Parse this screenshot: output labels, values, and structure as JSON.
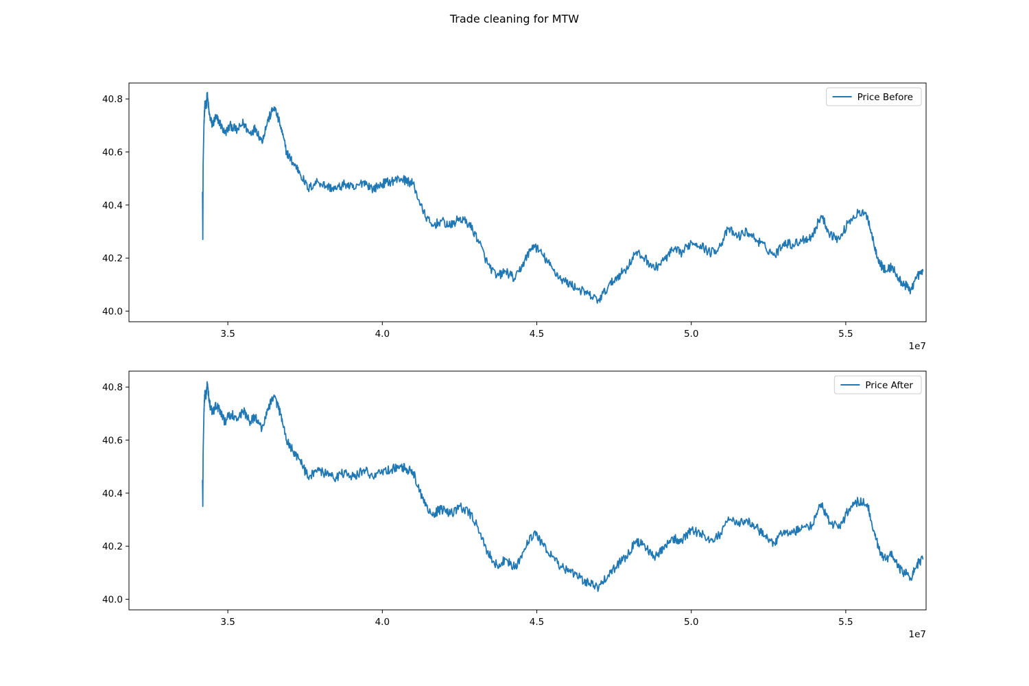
{
  "figure": {
    "suptitle": "Trade cleaning for MTW"
  },
  "chart_data": [
    {
      "type": "line",
      "title": "",
      "xlabel": "",
      "ylabel": "",
      "x_offset_label": "1e7",
      "xlim": [
        31800000,
        57600000
      ],
      "ylim": [
        39.96,
        40.86
      ],
      "x_ticks": [
        35000000,
        40000000,
        45000000,
        50000000,
        55000000
      ],
      "x_tick_labels": [
        "3.5",
        "4.0",
        "4.5",
        "5.0",
        "5.5"
      ],
      "y_ticks": [
        40.0,
        40.2,
        40.4,
        40.6,
        40.8
      ],
      "y_tick_labels": [
        "40.0",
        "40.2",
        "40.4",
        "40.6",
        "40.8"
      ],
      "grid": false,
      "legend_position": "top-right",
      "series": [
        {
          "name": "Price Before",
          "color": "#1f77b4",
          "x": [
            34180000,
            34190000,
            34200000,
            34230000,
            34260000,
            34300000,
            34330000,
            34400000,
            34500000,
            34600000,
            34700000,
            34900000,
            35100000,
            35300000,
            35500000,
            35700000,
            35900000,
            36100000,
            36300000,
            36500000,
            36700000,
            36900000,
            37100000,
            37300000,
            37600000,
            37900000,
            38200000,
            38500000,
            38800000,
            39100000,
            39400000,
            39700000,
            40000000,
            40300000,
            40600000,
            40800000,
            41000000,
            41300000,
            41600000,
            41900000,
            42200000,
            42500000,
            42800000,
            43100000,
            43400000,
            43700000,
            44000000,
            44300000,
            44600000,
            44900000,
            45200000,
            45500000,
            45800000,
            46100000,
            46400000,
            46700000,
            47000000,
            47300000,
            47600000,
            47900000,
            48200000,
            48500000,
            48800000,
            49100000,
            49400000,
            49700000,
            50000000,
            50300000,
            50600000,
            50900000,
            51200000,
            51500000,
            51800000,
            52100000,
            52400000,
            52700000,
            53000000,
            53300000,
            53600000,
            53900000,
            54200000,
            54500000,
            54800000,
            55100000,
            55400000,
            55700000,
            55900000,
            56100000,
            56300000,
            56500000,
            56700000,
            56900000,
            57100000,
            57300000,
            57500000
          ],
          "values": [
            40.45,
            40.27,
            40.55,
            40.72,
            40.78,
            40.77,
            40.82,
            40.74,
            40.7,
            40.73,
            40.72,
            40.67,
            40.7,
            40.68,
            40.71,
            40.67,
            40.69,
            40.64,
            40.72,
            40.77,
            40.7,
            40.6,
            40.56,
            40.53,
            40.46,
            40.49,
            40.47,
            40.46,
            40.48,
            40.46,
            40.49,
            40.46,
            40.48,
            40.49,
            40.5,
            40.49,
            40.48,
            40.38,
            40.32,
            40.34,
            40.32,
            40.35,
            40.33,
            40.27,
            40.18,
            40.13,
            40.15,
            40.12,
            40.19,
            40.25,
            40.21,
            40.16,
            40.12,
            40.1,
            40.08,
            40.06,
            40.04,
            40.09,
            40.13,
            40.16,
            40.22,
            40.2,
            40.16,
            40.19,
            40.23,
            40.22,
            40.26,
            40.25,
            40.22,
            40.24,
            40.31,
            40.28,
            40.3,
            40.27,
            40.24,
            40.21,
            40.26,
            40.25,
            40.27,
            40.28,
            40.36,
            40.29,
            40.27,
            40.34,
            40.37,
            40.36,
            40.26,
            40.18,
            40.15,
            40.17,
            40.12,
            40.1,
            40.08,
            40.13,
            40.15
          ]
        }
      ]
    },
    {
      "type": "line",
      "title": "",
      "xlabel": "",
      "ylabel": "",
      "x_offset_label": "1e7",
      "xlim": [
        31800000,
        57600000
      ],
      "ylim": [
        39.96,
        40.86
      ],
      "x_ticks": [
        35000000,
        40000000,
        45000000,
        50000000,
        55000000
      ],
      "x_tick_labels": [
        "3.5",
        "4.0",
        "4.5",
        "5.0",
        "5.5"
      ],
      "y_ticks": [
        40.0,
        40.2,
        40.4,
        40.6,
        40.8
      ],
      "y_tick_labels": [
        "40.0",
        "40.2",
        "40.4",
        "40.6",
        "40.8"
      ],
      "grid": false,
      "legend_position": "top-right",
      "series": [
        {
          "name": "Price After",
          "color": "#1f77b4",
          "x": [
            34180000,
            34190000,
            34200000,
            34230000,
            34260000,
            34300000,
            34330000,
            34400000,
            34500000,
            34600000,
            34700000,
            34900000,
            35100000,
            35300000,
            35500000,
            35700000,
            35900000,
            36100000,
            36300000,
            36500000,
            36700000,
            36900000,
            37100000,
            37300000,
            37600000,
            37900000,
            38200000,
            38500000,
            38800000,
            39100000,
            39400000,
            39700000,
            40000000,
            40300000,
            40600000,
            40800000,
            41000000,
            41300000,
            41600000,
            41900000,
            42200000,
            42500000,
            42800000,
            43100000,
            43400000,
            43700000,
            44000000,
            44300000,
            44600000,
            44900000,
            45200000,
            45500000,
            45800000,
            46100000,
            46400000,
            46700000,
            47000000,
            47300000,
            47600000,
            47900000,
            48200000,
            48500000,
            48800000,
            49100000,
            49400000,
            49700000,
            50000000,
            50300000,
            50600000,
            50900000,
            51200000,
            51500000,
            51800000,
            52100000,
            52400000,
            52700000,
            53000000,
            53300000,
            53600000,
            53900000,
            54200000,
            54500000,
            54800000,
            55100000,
            55400000,
            55700000,
            55900000,
            56100000,
            56300000,
            56500000,
            56700000,
            56900000,
            57100000,
            57300000,
            57500000
          ],
          "values": [
            40.45,
            40.35,
            40.55,
            40.72,
            40.78,
            40.77,
            40.82,
            40.74,
            40.7,
            40.73,
            40.72,
            40.67,
            40.7,
            40.68,
            40.71,
            40.67,
            40.69,
            40.64,
            40.72,
            40.77,
            40.7,
            40.6,
            40.56,
            40.53,
            40.46,
            40.49,
            40.47,
            40.46,
            40.48,
            40.46,
            40.49,
            40.46,
            40.48,
            40.49,
            40.5,
            40.49,
            40.48,
            40.38,
            40.32,
            40.34,
            40.32,
            40.35,
            40.33,
            40.27,
            40.18,
            40.13,
            40.15,
            40.12,
            40.19,
            40.25,
            40.21,
            40.16,
            40.12,
            40.1,
            40.08,
            40.06,
            40.04,
            40.09,
            40.13,
            40.16,
            40.22,
            40.2,
            40.16,
            40.19,
            40.23,
            40.22,
            40.26,
            40.25,
            40.22,
            40.24,
            40.31,
            40.28,
            40.3,
            40.27,
            40.24,
            40.21,
            40.26,
            40.25,
            40.27,
            40.28,
            40.36,
            40.29,
            40.27,
            40.34,
            40.37,
            40.36,
            40.26,
            40.18,
            40.15,
            40.17,
            40.12,
            40.1,
            40.08,
            40.13,
            40.15
          ]
        }
      ]
    }
  ]
}
